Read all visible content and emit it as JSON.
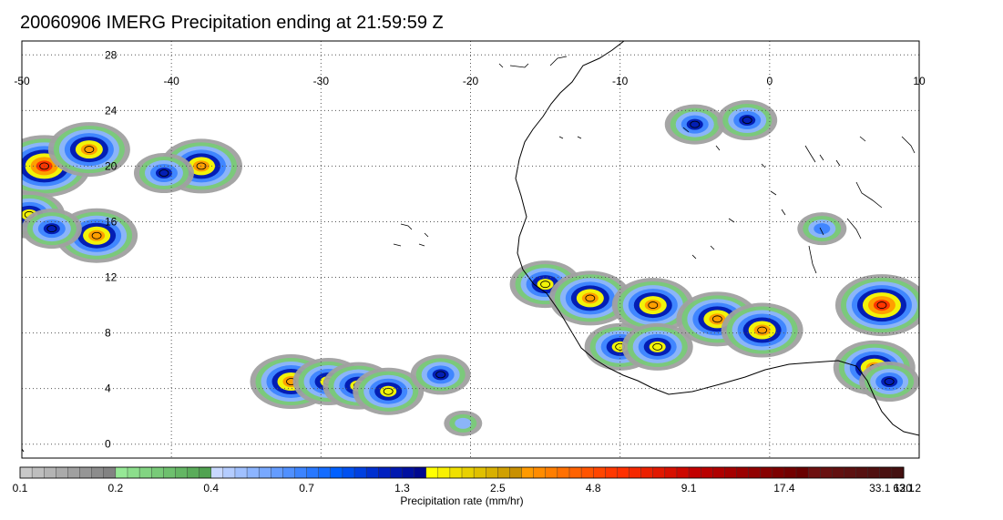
{
  "title": "20060906 IMERG Precipitation ending at 21:59:59 Z",
  "map": {
    "lon_range": [
      -50,
      10
    ],
    "lat_range": [
      -1,
      29
    ],
    "lon_ticks": [
      "-50",
      "-40",
      "-30",
      "-20",
      "-10",
      "0",
      "10"
    ],
    "lat_ticks": [
      "28",
      "24",
      "20",
      "16",
      "12",
      "8",
      "4",
      "0"
    ],
    "grid": "dotted"
  },
  "colorbar": {
    "label": "Precipitation rate (mm/hr)",
    "tick_labels": [
      "0.1",
      "0.2",
      "0.4",
      "0.7",
      "1.3",
      "2.5",
      "4.8",
      "9.1",
      "17.4",
      "33.1",
      "63.1",
      "120.2"
    ],
    "colors": [
      "#c8c8c8",
      "#bebebe",
      "#b4b4b4",
      "#aaaaaa",
      "#a0a0a0",
      "#969696",
      "#8c8c8c",
      "#828282",
      "#96e896",
      "#8cde8c",
      "#82d482",
      "#78ca78",
      "#6ec06e",
      "#64b664",
      "#5aac5a",
      "#50a250",
      "#c8d8ff",
      "#b4ccff",
      "#a0c0ff",
      "#8cb4ff",
      "#78a8ff",
      "#649cff",
      "#5090ff",
      "#3c84ff",
      "#2878ff",
      "#146cff",
      "#0060ff",
      "#0050f0",
      "#0040e0",
      "#0030d0",
      "#0020c0",
      "#0018b0",
      "#0010a0",
      "#000890",
      "#ffff00",
      "#f8f000",
      "#f0e000",
      "#e8d000",
      "#e0c000",
      "#d8b000",
      "#d0a000",
      "#c89000",
      "#ff9a00",
      "#ff8c00",
      "#ff7e00",
      "#ff7000",
      "#ff6200",
      "#ff5400",
      "#ff4600",
      "#ff3800",
      "#ff3000",
      "#f52800",
      "#eb2000",
      "#e11800",
      "#d71000",
      "#cd0800",
      "#c30000",
      "#b90000",
      "#af0000",
      "#a50000",
      "#9b0000",
      "#910000",
      "#870000",
      "#7d0000",
      "#730000",
      "#690000",
      "#6e1010",
      "#681010",
      "#621010",
      "#5c1010",
      "#561010",
      "#501010",
      "#4a1010",
      "#441010"
    ]
  },
  "precip_cells": [
    {
      "lon": -48.5,
      "lat": 20.0,
      "rate": 17.4
    },
    {
      "lon": -45.5,
      "lat": 21.2,
      "rate": 9.1
    },
    {
      "lon": -45.0,
      "lat": 15.0,
      "rate": 9.1
    },
    {
      "lon": -49.5,
      "lat": 16.5,
      "rate": 4.8
    },
    {
      "lon": -48.0,
      "lat": 15.5,
      "rate": 2.5
    },
    {
      "lon": -38.0,
      "lat": 20.0,
      "rate": 9.1
    },
    {
      "lon": -40.5,
      "lat": 19.5,
      "rate": 2.5
    },
    {
      "lon": -32.0,
      "lat": 4.5,
      "rate": 9.1
    },
    {
      "lon": -29.5,
      "lat": 4.5,
      "rate": 4.8
    },
    {
      "lon": -27.5,
      "lat": 4.2,
      "rate": 4.8
    },
    {
      "lon": -25.5,
      "lat": 3.8,
      "rate": 4.8
    },
    {
      "lon": -22.0,
      "lat": 5.0,
      "rate": 2.5
    },
    {
      "lon": -15.0,
      "lat": 11.5,
      "rate": 4.8
    },
    {
      "lon": -12.0,
      "lat": 10.5,
      "rate": 9.1
    },
    {
      "lon": -7.8,
      "lat": 10.0,
      "rate": 9.1
    },
    {
      "lon": -3.5,
      "lat": 9.0,
      "rate": 9.1
    },
    {
      "lon": -0.5,
      "lat": 8.2,
      "rate": 9.1
    },
    {
      "lon": -10.0,
      "lat": 7.0,
      "rate": 4.8
    },
    {
      "lon": -7.5,
      "lat": 7.0,
      "rate": 4.8
    },
    {
      "lon": 7.5,
      "lat": 10.0,
      "rate": 17.4
    },
    {
      "lon": 7.0,
      "lat": 5.5,
      "rate": 9.1
    },
    {
      "lon": 8.0,
      "lat": 4.5,
      "rate": 2.5
    },
    {
      "lon": -5.0,
      "lat": 23.0,
      "rate": 2.5
    },
    {
      "lon": -1.5,
      "lat": 23.3,
      "rate": 2.5
    },
    {
      "lon": 3.5,
      "lat": 15.5,
      "rate": 1.3
    },
    {
      "lon": -20.5,
      "lat": 1.5,
      "rate": 0.7
    }
  ]
}
